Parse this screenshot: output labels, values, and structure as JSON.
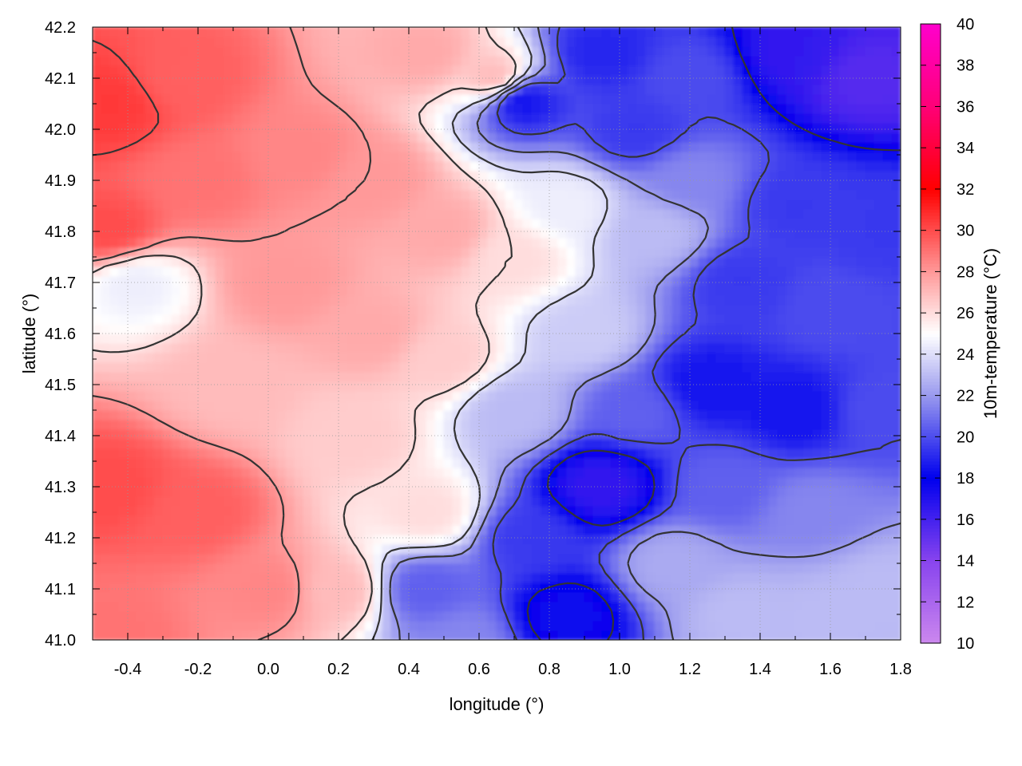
{
  "chart_data": {
    "type": "heatmap",
    "title": "",
    "xlabel": "longitude (°)",
    "ylabel": "latitude (°)",
    "colorbar_label": "10m-temperature (°C)",
    "xlim": [
      -0.5,
      1.8
    ],
    "ylim": [
      41.0,
      42.2
    ],
    "x_ticks": [
      "-0.4",
      "-0.2",
      "0.0",
      "0.2",
      "0.4",
      "0.6",
      "0.8",
      "1.0",
      "1.2",
      "1.4",
      "1.6",
      "1.8"
    ],
    "y_ticks": [
      "41.0",
      "41.1",
      "41.2",
      "41.3",
      "41.4",
      "41.5",
      "41.6",
      "41.7",
      "41.8",
      "41.9",
      "42.0",
      "42.1",
      "42.2"
    ],
    "colorbar_range": [
      10,
      40
    ],
    "colorbar_ticks": [
      "10",
      "12",
      "14",
      "16",
      "18",
      "20",
      "22",
      "24",
      "26",
      "28",
      "30",
      "32",
      "34",
      "36",
      "38",
      "40"
    ],
    "colorscale": [
      {
        "value": 10,
        "color": "#cc88ee"
      },
      {
        "value": 14,
        "color": "#8844ee"
      },
      {
        "value": 18,
        "color": "#0000ee"
      },
      {
        "value": 22,
        "color": "#9999ee"
      },
      {
        "value": 25,
        "color": "#ffffff"
      },
      {
        "value": 28,
        "color": "#ff9999"
      },
      {
        "value": 32,
        "color": "#ff0000"
      },
      {
        "value": 36,
        "color": "#ff0077"
      },
      {
        "value": 40,
        "color": "#ff00cc"
      }
    ],
    "grid": true,
    "contour_lines": true,
    "field_samples": [
      {
        "x": -0.45,
        "y": 42.05,
        "t": 30.5
      },
      {
        "x": -0.45,
        "y": 41.8,
        "t": 30.0
      },
      {
        "x": -0.45,
        "y": 41.3,
        "t": 30.0
      },
      {
        "x": -0.45,
        "y": 41.0,
        "t": 29.0
      },
      {
        "x": -0.25,
        "y": 42.1,
        "t": 29.5
      },
      {
        "x": -0.2,
        "y": 41.9,
        "t": 29.0
      },
      {
        "x": -0.1,
        "y": 41.5,
        "t": 27.0
      },
      {
        "x": -0.2,
        "y": 41.25,
        "t": 29.5
      },
      {
        "x": 0.0,
        "y": 41.1,
        "t": 28.5
      },
      {
        "x": 0.1,
        "y": 41.95,
        "t": 28.5
      },
      {
        "x": 0.05,
        "y": 41.7,
        "t": 28.0
      },
      {
        "x": -0.38,
        "y": 41.7,
        "t": 24.5
      },
      {
        "x": 0.3,
        "y": 41.9,
        "t": 28.0
      },
      {
        "x": 0.3,
        "y": 41.6,
        "t": 27.5
      },
      {
        "x": 0.25,
        "y": 41.4,
        "t": 26.5
      },
      {
        "x": 0.2,
        "y": 41.1,
        "t": 27.0
      },
      {
        "x": 0.45,
        "y": 42.15,
        "t": 27.5
      },
      {
        "x": 0.5,
        "y": 41.8,
        "t": 27.5
      },
      {
        "x": 0.5,
        "y": 41.55,
        "t": 26.5
      },
      {
        "x": 0.45,
        "y": 41.25,
        "t": 26.0
      },
      {
        "x": 0.45,
        "y": 41.1,
        "t": 20.5
      },
      {
        "x": 0.55,
        "y": 41.0,
        "t": 21.5
      },
      {
        "x": 0.65,
        "y": 42.1,
        "t": 27.0
      },
      {
        "x": 0.72,
        "y": 42.06,
        "t": 18.5
      },
      {
        "x": 0.7,
        "y": 41.75,
        "t": 26.0
      },
      {
        "x": 0.7,
        "y": 41.45,
        "t": 23.0
      },
      {
        "x": 0.75,
        "y": 41.2,
        "t": 19.5
      },
      {
        "x": 0.85,
        "y": 41.05,
        "t": 17.5
      },
      {
        "x": 0.9,
        "y": 41.6,
        "t": 23.5
      },
      {
        "x": 0.85,
        "y": 41.85,
        "t": 24.5
      },
      {
        "x": 0.95,
        "y": 42.15,
        "t": 19.0
      },
      {
        "x": 0.95,
        "y": 41.3,
        "t": 16.5
      },
      {
        "x": 1.05,
        "y": 41.45,
        "t": 20.5
      },
      {
        "x": 1.1,
        "y": 41.8,
        "t": 23.0
      },
      {
        "x": 1.05,
        "y": 42.0,
        "t": 19.5
      },
      {
        "x": 1.15,
        "y": 41.15,
        "t": 22.5
      },
      {
        "x": 1.2,
        "y": 42.1,
        "t": 20.0
      },
      {
        "x": 1.2,
        "y": 41.9,
        "t": 21.5
      },
      {
        "x": 1.25,
        "y": 41.5,
        "t": 18.5
      },
      {
        "x": 1.3,
        "y": 41.3,
        "t": 20.5
      },
      {
        "x": 1.35,
        "y": 41.7,
        "t": 19.5
      },
      {
        "x": 1.35,
        "y": 41.05,
        "t": 23.0
      },
      {
        "x": 1.5,
        "y": 42.15,
        "t": 16.5
      },
      {
        "x": 1.5,
        "y": 41.85,
        "t": 19.5
      },
      {
        "x": 1.5,
        "y": 41.45,
        "t": 18.5
      },
      {
        "x": 1.6,
        "y": 41.65,
        "t": 20.0
      },
      {
        "x": 1.55,
        "y": 41.25,
        "t": 21.5
      },
      {
        "x": 1.6,
        "y": 41.05,
        "t": 23.0
      },
      {
        "x": 1.7,
        "y": 42.1,
        "t": 15.5
      },
      {
        "x": 1.75,
        "y": 41.8,
        "t": 19.5
      },
      {
        "x": 1.75,
        "y": 41.45,
        "t": 20.0
      },
      {
        "x": 1.75,
        "y": 41.1,
        "t": 23.0
      }
    ]
  }
}
